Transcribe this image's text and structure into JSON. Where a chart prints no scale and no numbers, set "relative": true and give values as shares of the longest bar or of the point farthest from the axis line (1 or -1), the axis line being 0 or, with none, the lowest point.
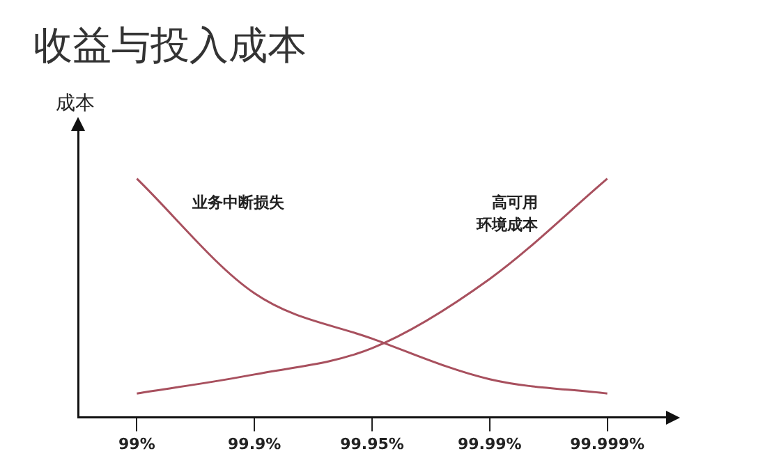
{
  "chart_data": {
    "type": "line",
    "title": "收益与投入成本",
    "ylabel": "成本",
    "relative": true,
    "legend": false,
    "grid": false,
    "marker": "none",
    "line_style": "solid",
    "tick_labels": "x",
    "categories": [
      "99%",
      "99.9%",
      "99.95%",
      "99.99%",
      "99.999%"
    ],
    "series": [
      {
        "name": "业务中断损失",
        "color": "#a8505e",
        "values": [
          1,
          0.52,
          0.33,
          0.16,
          0.1
        ]
      },
      {
        "name": "高可用环境成本",
        "color": "#a8505e",
        "values": [
          0.1,
          0.18,
          0.29,
          0.58,
          1
        ]
      }
    ]
  }
}
